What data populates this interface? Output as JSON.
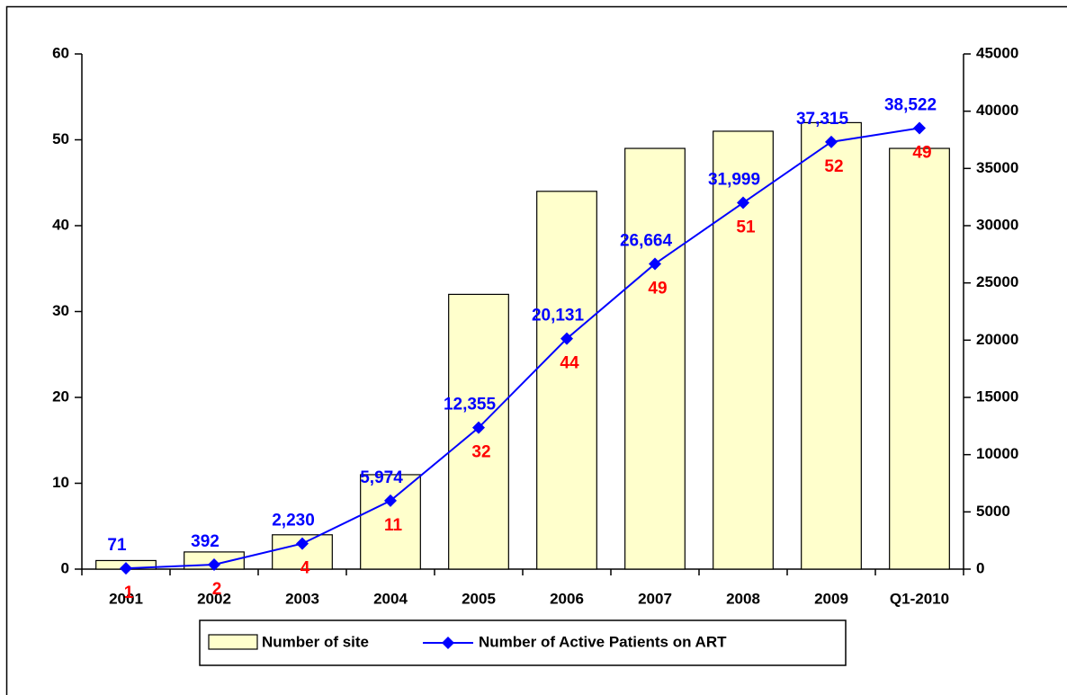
{
  "chart_data": {
    "type": "bar_line",
    "categories": [
      "2001",
      "2002",
      "2003",
      "2004",
      "2005",
      "2006",
      "2007",
      "2008",
      "2009",
      "Q1-2010"
    ],
    "series": [
      {
        "name": "Number of site",
        "color": "#ffffcc",
        "values": [
          1,
          2,
          4,
          11,
          32,
          44,
          49,
          51,
          52,
          49
        ]
      },
      {
        "name": "Number of Active Patients on ART",
        "color": "#0000ff",
        "axis": "y2",
        "values": [
          71,
          392,
          2230,
          5974,
          12355,
          20131,
          26664,
          31999,
          37315,
          38522
        ],
        "value_labels": [
          "71",
          "392",
          "2,230",
          "5,974",
          "12,355",
          "20,131",
          "26,664",
          "31,999",
          "37,315",
          "38,522"
        ]
      }
    ],
    "ylim": [
      0,
      60
    ],
    "yticks": [
      0,
      10,
      20,
      30,
      40,
      50,
      60
    ],
    "y2lim": [
      0,
      45000
    ],
    "y2ticks": [
      0,
      5000,
      10000,
      15000,
      20000,
      25000,
      30000,
      35000,
      40000,
      45000
    ],
    "legend": "bottom"
  }
}
